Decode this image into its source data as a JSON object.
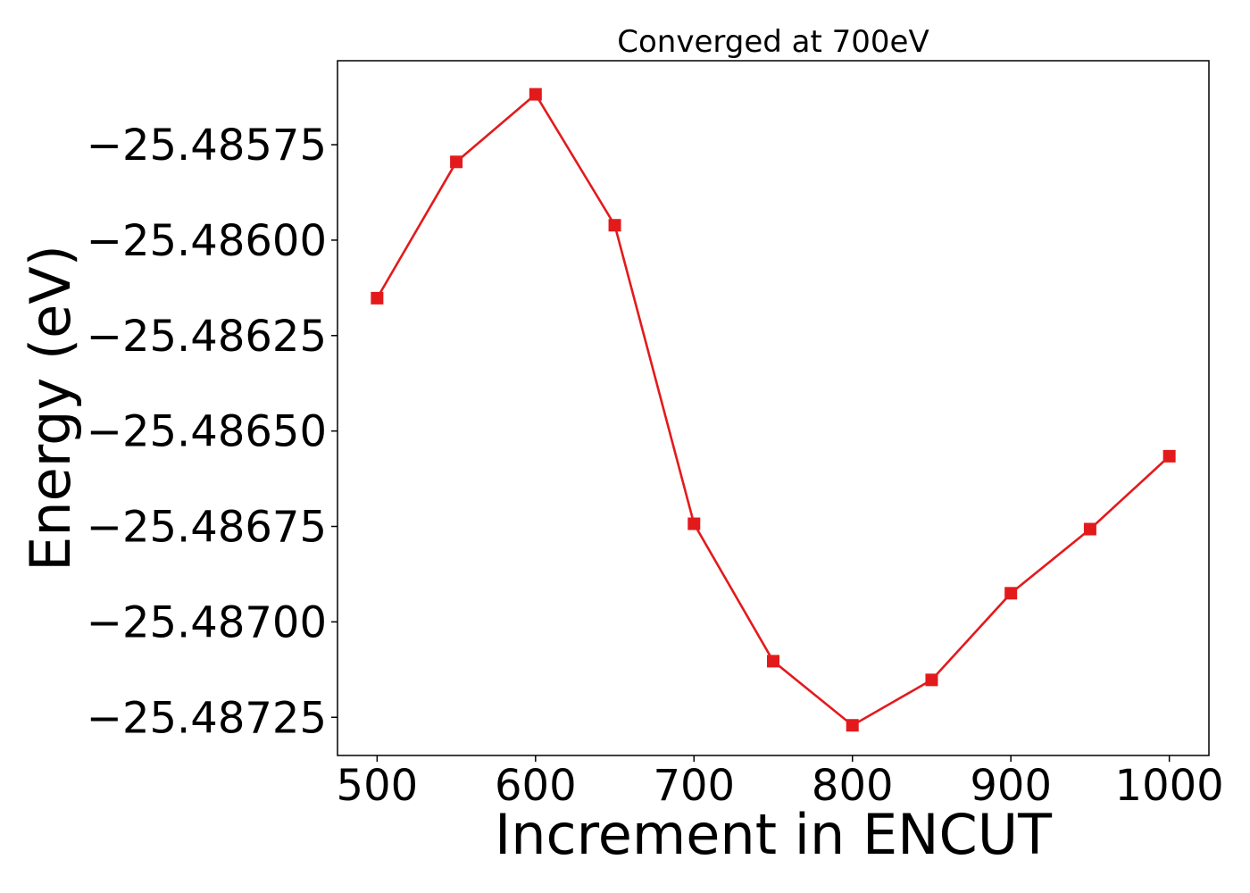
{
  "chart_data": {
    "type": "line",
    "title": "Converged at 700eV",
    "xlabel": "Increment in ENCUT",
    "ylabel": "Energy (eV)",
    "x": [
      500,
      550,
      600,
      650,
      700,
      750,
      800,
      850,
      900,
      950,
      1000
    ],
    "series": [
      {
        "values": [
          -25.486152,
          -25.485795,
          -25.485618,
          -25.485961,
          -25.486743,
          -25.487103,
          -25.487271,
          -25.487152,
          -25.486925,
          -25.486757,
          -25.486566
        ],
        "color": "#e31a1c",
        "marker": "square"
      }
    ],
    "xlim": [
      475,
      1025
    ],
    "ylim": [
      -25.48735,
      -25.48553
    ],
    "xticks": [
      500,
      600,
      700,
      800,
      900,
      1000
    ],
    "xtick_labels": [
      "500",
      "600",
      "700",
      "800",
      "900",
      "1000"
    ],
    "yticks": [
      -25.48575,
      -25.486,
      -25.48625,
      -25.4865,
      -25.48675,
      -25.487,
      -25.48725
    ],
    "ytick_labels": [
      "−25.48575",
      "−25.48600",
      "−25.48625",
      "−25.48650",
      "−25.48675",
      "−25.48700",
      "−25.48725"
    ],
    "grid": false,
    "legend": "none"
  }
}
